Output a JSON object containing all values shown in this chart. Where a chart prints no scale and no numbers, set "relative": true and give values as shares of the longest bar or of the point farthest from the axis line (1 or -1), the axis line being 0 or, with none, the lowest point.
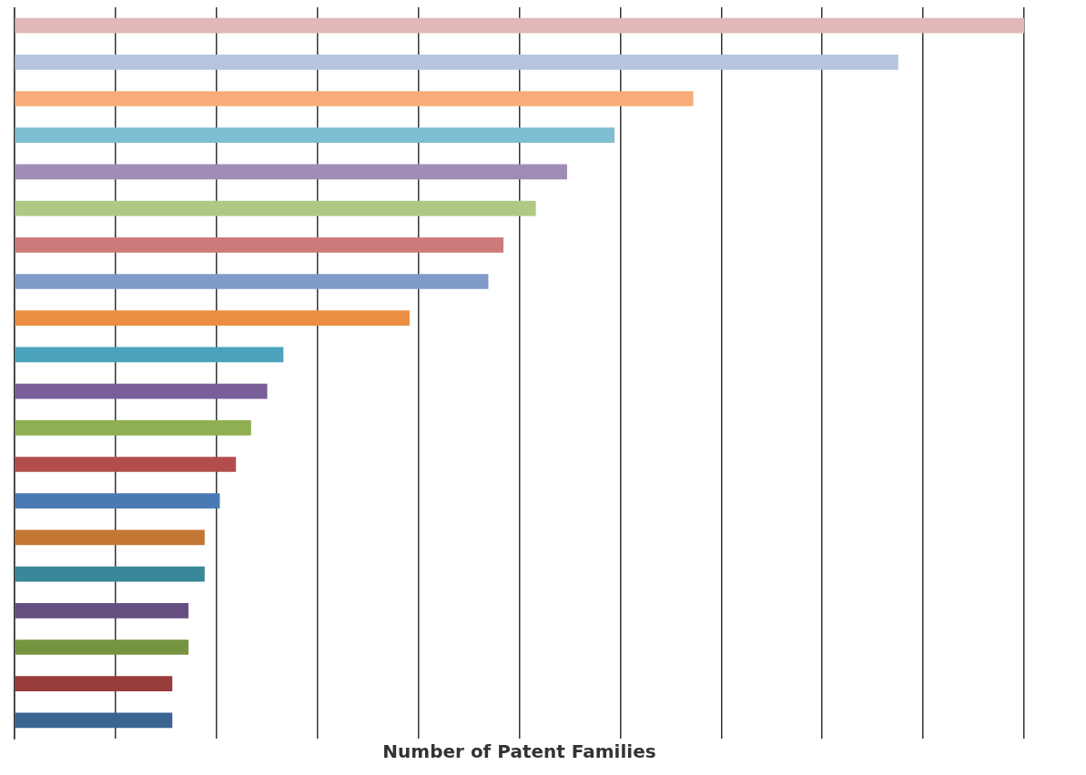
{
  "chart_data": {
    "type": "bar",
    "orientation": "horizontal",
    "relative": true,
    "xlabel": "Number of Patent Families",
    "grid": "x",
    "categories": [
      null,
      null,
      null,
      null,
      null,
      null,
      null,
      null,
      null,
      null,
      null,
      null,
      null,
      null,
      null,
      null,
      null,
      null,
      null,
      null
    ],
    "values": [
      1,
      0.875,
      0.672,
      0.594,
      0.547,
      0.516,
      0.484,
      0.469,
      0.391,
      0.266,
      0.25,
      0.234,
      0.219,
      0.203,
      0.188,
      0.188,
      0.172,
      0.172,
      0.156,
      0.156
    ],
    "colors": [
      "#dfb8b7",
      "#b7c4de",
      "#f9ac78",
      "#7fbdd0",
      "#9f8db7",
      "#afc985",
      "#cc7b7a",
      "#7f9cc9",
      "#e98e42",
      "#4aa3bb",
      "#795f9a",
      "#90ae52",
      "#b24d4b",
      "#4a7ab4",
      "#c47734",
      "#3a8799",
      "#654e80",
      "#76943f",
      "#973c3a",
      "#3b6493"
    ]
  }
}
